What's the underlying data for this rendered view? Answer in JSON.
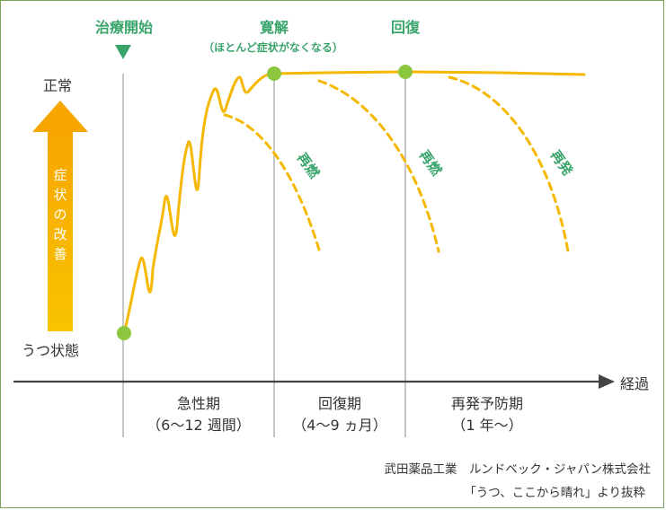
{
  "y_axis": {
    "top_label": "正常",
    "bottom_label": "うつ状態",
    "arrow_label": [
      "症",
      "状",
      "の",
      "改",
      "善"
    ]
  },
  "x_axis": {
    "label": "経過"
  },
  "milestones": {
    "start": "治療開始",
    "remission": "寛解",
    "remission_note": "（ほとんど症状がなくなる）",
    "recovery": "回復"
  },
  "relapse_labels": {
    "first": "再燃",
    "second": "再燃",
    "third": "再発"
  },
  "phases": [
    {
      "name": "急性期",
      "duration": "（6〜12 週間）"
    },
    {
      "name": "回復期",
      "duration": "（4〜9 ヵ月）"
    },
    {
      "name": "再発予防期",
      "duration": "（1 年〜）"
    }
  ],
  "source": {
    "line1": "武田薬品工業　ルンドベック・ジャパン株式会社",
    "line2": "「うつ、ここから晴れ」より抜粋"
  },
  "colors": {
    "curve": "#f5b800",
    "accent_green": "#3aa56b",
    "point_green": "#8cc63f",
    "axis": "#444444",
    "text": "#333333",
    "divider": "#999999",
    "frame": "#7aa15a"
  }
}
